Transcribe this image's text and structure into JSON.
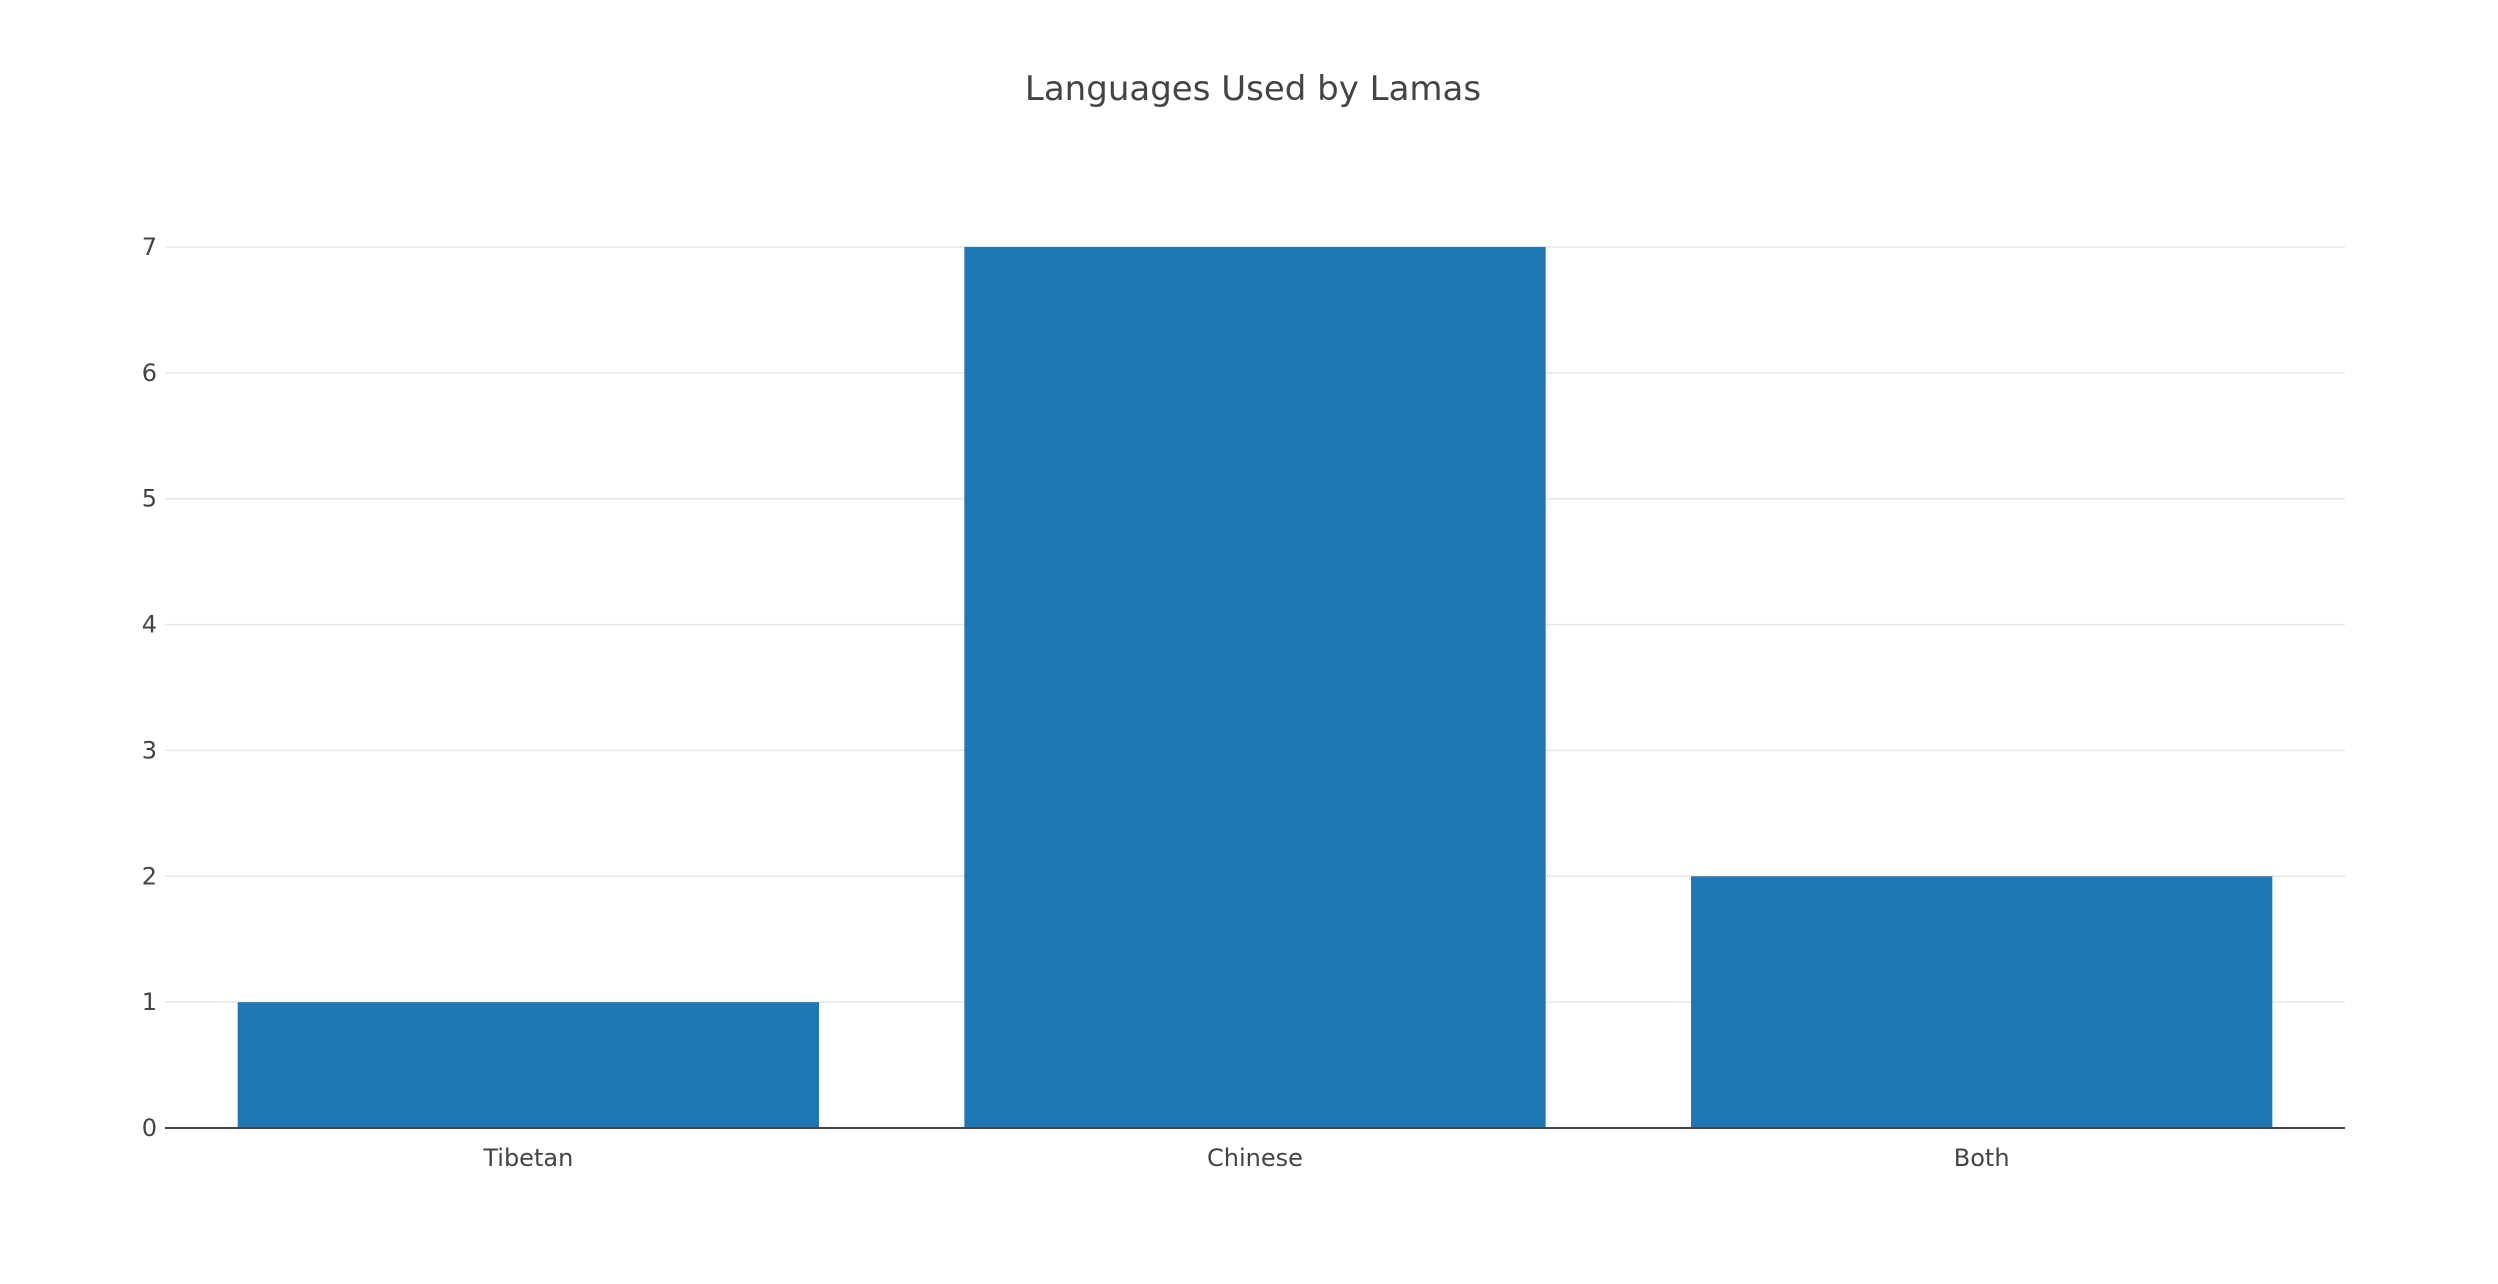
{
  "chart_data": {
    "type": "bar",
    "title": "Languages Used by Lamas",
    "categories": [
      "Tibetan",
      "Chinese",
      "Both"
    ],
    "values": [
      1,
      7,
      2
    ],
    "xlabel": "",
    "ylabel": "",
    "ylim": [
      0,
      7
    ],
    "yticks": [
      0,
      1,
      2,
      3,
      4,
      5,
      6,
      7
    ],
    "grid": true,
    "legend": "none",
    "bar_color": "#1f77b4"
  }
}
